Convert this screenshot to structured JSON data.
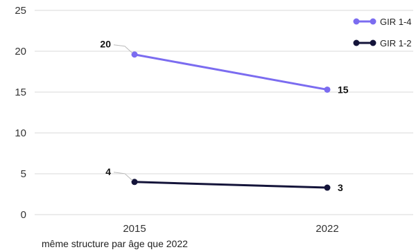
{
  "chart_data": {
    "type": "line",
    "x": [
      "2015",
      "2022"
    ],
    "ylim": [
      0,
      25
    ],
    "yticks": [
      0,
      5,
      10,
      15,
      20,
      25
    ],
    "grid": true,
    "legend_position": "top-right",
    "series": [
      {
        "name": "GIR 1-4",
        "values": [
          19.6,
          15.3
        ],
        "labels": [
          "20",
          "15"
        ],
        "color": "#7b6cf0"
      },
      {
        "name": "GIR 1-2",
        "values": [
          4.0,
          3.3
        ],
        "labels": [
          "4",
          "3"
        ],
        "color": "#14143a"
      }
    ],
    "footnote": "même structure par âge que 2022"
  }
}
